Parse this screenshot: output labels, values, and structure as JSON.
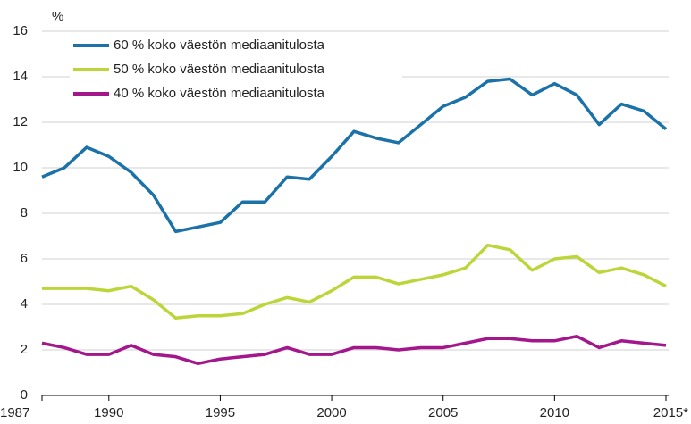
{
  "chart_data": {
    "type": "line",
    "y_label": "%",
    "x": [
      1987,
      1988,
      1989,
      1990,
      1991,
      1992,
      1993,
      1994,
      1995,
      1996,
      1997,
      1998,
      1999,
      2000,
      2001,
      2002,
      2003,
      2004,
      2005,
      2006,
      2007,
      2008,
      2009,
      2010,
      2011,
      2012,
      2013,
      2014,
      2015
    ],
    "series": [
      {
        "name": "60 % koko väestön mediaanitulosta",
        "color": "#1b72a8",
        "values": [
          9.6,
          10.0,
          10.9,
          10.5,
          9.8,
          8.8,
          7.2,
          7.4,
          7.6,
          8.5,
          8.5,
          9.6,
          9.5,
          10.5,
          11.6,
          11.3,
          11.1,
          11.9,
          12.7,
          13.1,
          13.8,
          13.9,
          13.2,
          13.7,
          13.2,
          11.9,
          12.8,
          12.5,
          11.7
        ]
      },
      {
        "name": "50 % koko väestön mediaanitulosta",
        "color": "#bcd63a",
        "values": [
          4.7,
          4.7,
          4.7,
          4.6,
          4.8,
          4.2,
          3.4,
          3.5,
          3.5,
          3.6,
          4.0,
          4.3,
          4.1,
          4.6,
          5.2,
          5.2,
          4.9,
          5.1,
          5.3,
          5.6,
          6.6,
          6.4,
          5.5,
          6.0,
          6.1,
          5.4,
          5.6,
          5.3,
          4.8
        ]
      },
      {
        "name": "40 % koko väestön mediaanitulosta",
        "color": "#a3168c",
        "values": [
          2.3,
          2.1,
          1.8,
          1.8,
          2.2,
          1.8,
          1.7,
          1.4,
          1.6,
          1.7,
          1.8,
          2.1,
          1.8,
          1.8,
          2.1,
          2.1,
          2.0,
          2.1,
          2.1,
          2.3,
          2.5,
          2.5,
          2.4,
          2.4,
          2.6,
          2.1,
          2.4,
          2.3,
          2.2
        ]
      }
    ],
    "xlim": [
      1987,
      2015
    ],
    "xticks": [
      1987,
      1990,
      1995,
      2000,
      2005,
      2010,
      {
        "value": 2015,
        "label": "2015*"
      }
    ],
    "ylim": [
      0,
      16
    ],
    "yticks": [
      0,
      2,
      4,
      6,
      8,
      10,
      12,
      14,
      16
    ],
    "grid": true,
    "legend": "top-left"
  }
}
